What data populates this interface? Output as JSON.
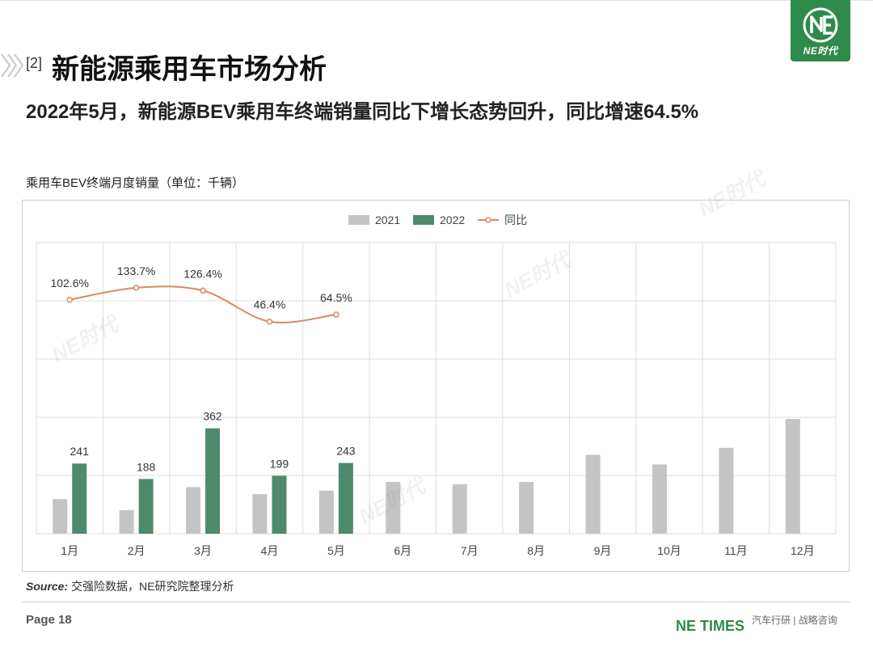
{
  "header": {
    "section_number": "[2]",
    "page_title": "新能源乘用车市场分析",
    "headline": "2022年5月，新能源BEV乘用车终端销量同比下增长态势回升，同比增速64.5%"
  },
  "logo": {
    "text": "NE时代",
    "icon": "ne-logo-icon",
    "color": "#2f8a4c"
  },
  "chart_title": "乘用车BEV终端月度销量（单位：千辆）",
  "source": {
    "label": "Source:",
    "text": " 交强险数据，NE研究院整理分析"
  },
  "footer": {
    "page": "Page 18",
    "brand": "NE TIMES",
    "tagline": "汽车行研 | 战略咨询"
  },
  "watermark_text": "NE时代",
  "chart_data": {
    "type": "bar+line",
    "categories": [
      "1月",
      "2月",
      "3月",
      "4月",
      "5月",
      "6月",
      "7月",
      "8月",
      "9月",
      "10月",
      "11月",
      "12月"
    ],
    "series": [
      {
        "name": "2021",
        "type": "bar",
        "color": "#c4c4c4",
        "values": [
          119,
          81,
          160,
          136,
          148,
          178,
          170,
          178,
          271,
          238,
          295,
          394
        ],
        "labels_shown": false
      },
      {
        "name": "2022",
        "type": "bar",
        "color": "#4e8a6c",
        "values": [
          241,
          188,
          362,
          199,
          243,
          null,
          null,
          null,
          null,
          null,
          null,
          null
        ],
        "labels_shown": true
      },
      {
        "name": "同比",
        "type": "line",
        "color": "#d9895f",
        "unit": "%",
        "values": [
          102.6,
          133.7,
          126.4,
          46.4,
          64.5,
          null,
          null,
          null,
          null,
          null,
          null,
          null
        ],
        "labels": [
          "102.6%",
          "133.7%",
          "126.4%",
          "46.4%",
          "64.5%"
        ]
      }
    ],
    "legend_position": "top-center",
    "grid": true,
    "bar_axis_range": [
      0,
      1000
    ],
    "line_axis_range": [
      -500,
      250
    ]
  }
}
